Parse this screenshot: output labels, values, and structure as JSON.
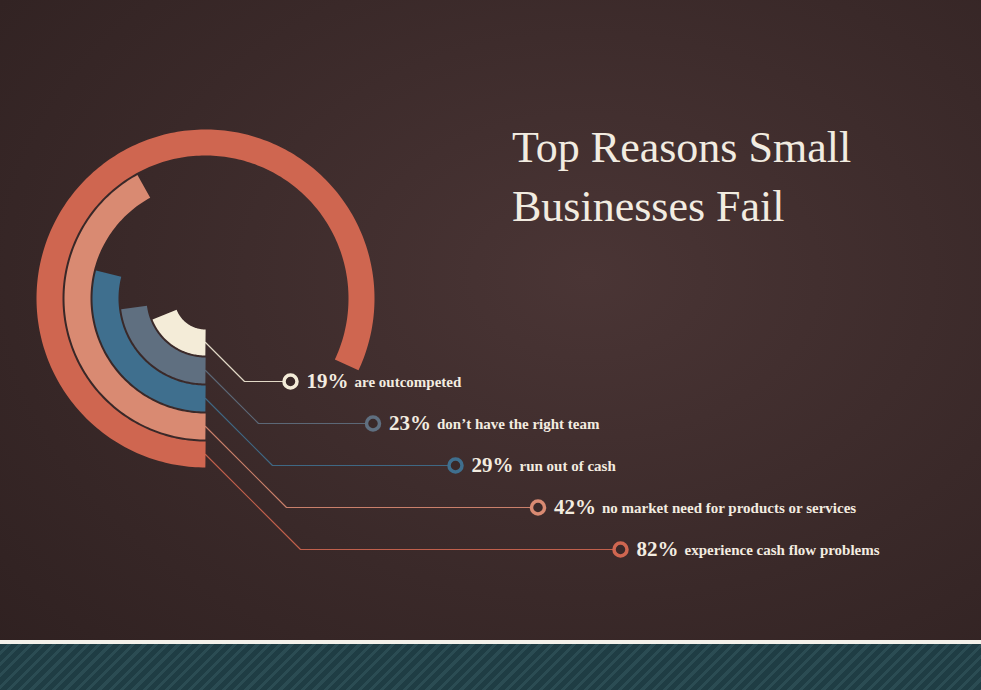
{
  "chart_data": {
    "type": "radial_bar",
    "title": "Top Reasons Small Businesses Fail",
    "categories": [
      "are outcompeted",
      "don’t have the right team",
      "run out of cash",
      "no market need for products or services",
      "experience cash flow problems"
    ],
    "values": [
      19,
      23,
      29,
      42,
      82
    ],
    "value_labels": [
      "19%",
      "23%",
      "29%",
      "42%",
      "82%"
    ],
    "colors": [
      "#f4ecd8",
      "#5f6f80",
      "#3f6f8e",
      "#d98a72",
      "#cf6650"
    ],
    "xlim": [
      0,
      100
    ],
    "data_labels": true,
    "tick_labels": false
  }
}
